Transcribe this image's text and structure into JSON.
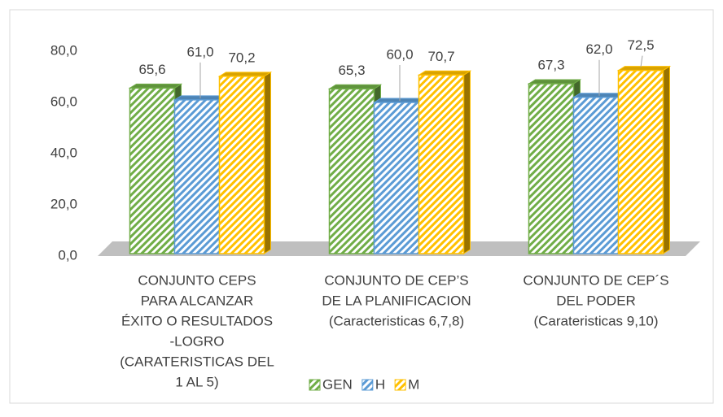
{
  "chart_data": {
    "type": "bar",
    "categories": [
      [
        "CONJUNTO CEPS",
        "PARA ALCANZAR",
        "ÉXITO O RESULTADOS",
        "-LOGRO",
        "(CARATERISTICAS DEL",
        "1 AL 5)"
      ],
      [
        "CONJUNTO DE CEP’S",
        "DE LA PLANIFICACION",
        "(Caracteristicas 6,7,8)"
      ],
      [
        "CONJUNTO DE CEP´S",
        "DEL PODER",
        "(Carateristicas 9,10)"
      ]
    ],
    "series": [
      {
        "name": "GEN",
        "color": "#70ad47",
        "values": [
          65.6,
          65.3,
          67.3
        ],
        "value_labels": [
          "65,6",
          "65,3",
          "67,3"
        ]
      },
      {
        "name": "H",
        "color": "#5b9bd5",
        "values": [
          61.0,
          60.0,
          62.0
        ],
        "value_labels": [
          "61,0",
          "60,0",
          "62,0"
        ]
      },
      {
        "name": "M",
        "color": "#ffc000",
        "values": [
          70.2,
          70.7,
          72.5
        ],
        "value_labels": [
          "70,2",
          "70,7",
          "72,5"
        ]
      }
    ],
    "ylim": [
      0,
      80
    ],
    "yticks": [
      {
        "value": 0,
        "label": "0,0"
      },
      {
        "value": 20,
        "label": "20,0"
      },
      {
        "value": 40,
        "label": "40,0"
      },
      {
        "value": 60,
        "label": "60,0"
      },
      {
        "value": 80,
        "label": "80,0"
      }
    ],
    "legend": "bottom"
  }
}
